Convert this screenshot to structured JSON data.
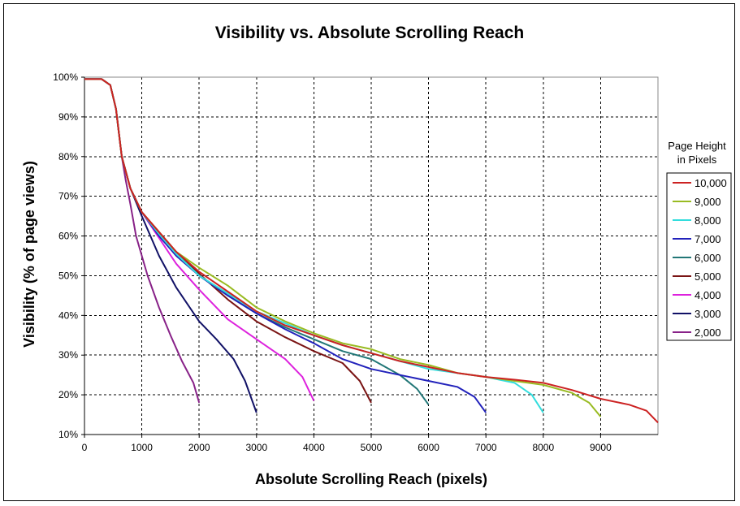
{
  "chart_data": {
    "type": "line",
    "title": "Visibility vs. Absolute Scrolling Reach",
    "xlabel": "Absolute Scrolling Reach (pixels)",
    "ylabel": "Visibility (% of page views)",
    "xlim": [
      0,
      10000
    ],
    "ylim": [
      10,
      100
    ],
    "x_ticks": [
      0,
      1000,
      2000,
      3000,
      4000,
      5000,
      6000,
      7000,
      8000,
      9000
    ],
    "x_tick_labels": [
      "0",
      "1000",
      "2000",
      "3000",
      "4000",
      "5000",
      "6000",
      "7000",
      "8000",
      "9000"
    ],
    "y_ticks": [
      10,
      20,
      30,
      40,
      50,
      60,
      70,
      80,
      90,
      100
    ],
    "y_tick_labels": [
      "10%",
      "20%",
      "30%",
      "40%",
      "50%",
      "60%",
      "70%",
      "80%",
      "90%",
      "100%"
    ],
    "grid": true,
    "legend_title_lines": [
      "Page Height",
      "in Pixels"
    ],
    "legend_position": "right",
    "series": [
      {
        "name": "10,000",
        "color": "#cc2222",
        "x": [
          0,
          300,
          450,
          550,
          650,
          800,
          1000,
          1300,
          1600,
          2000,
          2500,
          3000,
          3500,
          4000,
          4500,
          5000,
          5500,
          6000,
          6500,
          7000,
          7500,
          8000,
          8500,
          9000,
          9500,
          9800,
          10000
        ],
        "y": [
          99.5,
          99.5,
          98,
          92,
          80,
          72,
          66,
          61,
          56,
          51,
          46,
          41,
          37.5,
          35,
          32.5,
          30.5,
          28.5,
          27,
          25.5,
          24.5,
          23.8,
          23,
          21.2,
          19,
          17.5,
          16,
          13
        ]
      },
      {
        "name": "9,000",
        "color": "#99bb22",
        "x": [
          0,
          300,
          450,
          550,
          650,
          800,
          1000,
          1300,
          1600,
          2000,
          2500,
          3000,
          3500,
          4000,
          4500,
          5000,
          5500,
          6000,
          6500,
          7000,
          7500,
          8000,
          8500,
          8800,
          9000
        ],
        "y": [
          99.5,
          99.5,
          98,
          92,
          80,
          72,
          66,
          61,
          56,
          52,
          47.5,
          42,
          38.5,
          35.5,
          33,
          31.5,
          29,
          27.5,
          25.5,
          24.5,
          23.5,
          22.5,
          20.5,
          18,
          14.5
        ]
      },
      {
        "name": "8,000",
        "color": "#33dddd",
        "x": [
          0,
          300,
          450,
          550,
          650,
          800,
          1000,
          1300,
          1600,
          2000,
          2500,
          3000,
          3500,
          4000,
          4500,
          5000,
          5500,
          6000,
          6500,
          7000,
          7500,
          7800,
          8000
        ],
        "y": [
          99.5,
          99.5,
          98,
          92,
          80,
          72,
          66,
          60.5,
          55.5,
          50,
          45.5,
          41,
          38,
          35,
          32.5,
          30.5,
          28.5,
          26.5,
          25.5,
          24.5,
          23,
          20,
          15.5
        ]
      },
      {
        "name": "7,000",
        "color": "#2222bb",
        "x": [
          0,
          300,
          450,
          550,
          650,
          800,
          1000,
          1300,
          1600,
          2000,
          2500,
          3000,
          3500,
          4000,
          4500,
          5000,
          5500,
          6000,
          6500,
          6800,
          7000
        ],
        "y": [
          99.5,
          99.5,
          98,
          92,
          80,
          72,
          66,
          60,
          55,
          50,
          45,
          40.5,
          36.5,
          33,
          29,
          26.5,
          25,
          23.5,
          22,
          19.5,
          15.5
        ]
      },
      {
        "name": "6,000",
        "color": "#227777",
        "x": [
          0,
          300,
          450,
          550,
          650,
          800,
          1000,
          1300,
          1600,
          2000,
          2500,
          3000,
          3500,
          4000,
          4500,
          5000,
          5500,
          5800,
          6000
        ],
        "y": [
          99.5,
          99.5,
          98,
          92,
          80,
          72,
          66,
          60.5,
          55.5,
          50,
          45,
          40.5,
          37,
          34,
          31,
          29,
          25,
          21.5,
          17.5
        ]
      },
      {
        "name": "5,000",
        "color": "#7a1414",
        "x": [
          0,
          300,
          450,
          550,
          650,
          800,
          1000,
          1300,
          1600,
          2000,
          2500,
          3000,
          3500,
          4000,
          4500,
          4800,
          5000
        ],
        "y": [
          99.5,
          99.5,
          98,
          92,
          80,
          72,
          66,
          61,
          56,
          50.5,
          44,
          38.5,
          34.5,
          31,
          28,
          23.5,
          18
        ]
      },
      {
        "name": "4,000",
        "color": "#dd22dd",
        "x": [
          0,
          300,
          450,
          550,
          650,
          800,
          1000,
          1300,
          1600,
          2000,
          2500,
          3000,
          3500,
          3800,
          4000
        ],
        "y": [
          99.5,
          99.5,
          98,
          92,
          80,
          72,
          66,
          59.5,
          53,
          46.5,
          39,
          34,
          29,
          24.5,
          18.5
        ]
      },
      {
        "name": "3,000",
        "color": "#111166",
        "x": [
          0,
          300,
          450,
          550,
          650,
          800,
          1000,
          1300,
          1600,
          2000,
          2300,
          2600,
          2800,
          3000
        ],
        "y": [
          99.5,
          99.5,
          98,
          92,
          80,
          72,
          65,
          55,
          47,
          38.5,
          34,
          29,
          23.5,
          15.5
        ]
      },
      {
        "name": "2,000",
        "color": "#882288",
        "x": [
          0,
          300,
          450,
          550,
          650,
          720,
          800,
          900,
          1100,
          1300,
          1500,
          1700,
          1900,
          2000
        ],
        "y": [
          99.5,
          99.5,
          98,
          92,
          80,
          74,
          68,
          60,
          50,
          42,
          35,
          28.5,
          23,
          18
        ]
      }
    ]
  }
}
